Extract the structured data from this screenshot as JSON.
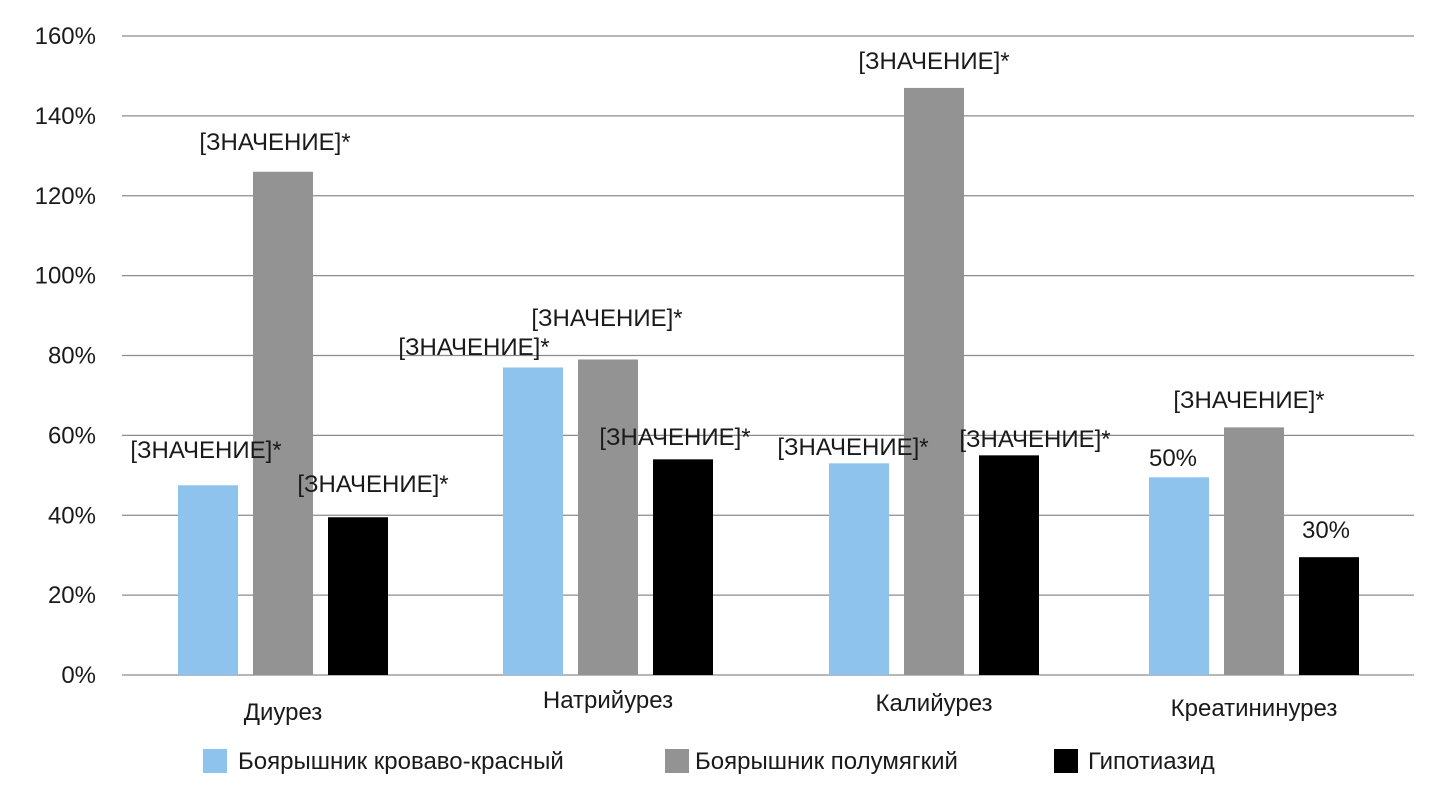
{
  "chart_data": {
    "type": "bar",
    "title": "",
    "xlabel": "",
    "ylabel": "",
    "categories": [
      "Диурез",
      "Натрийурез",
      "Калийурез",
      "Креатининурез"
    ],
    "ylim": [
      0,
      160
    ],
    "y_ticks": [
      "0%",
      "20%",
      "40%",
      "60%",
      "80%",
      "100%",
      "120%",
      "140%",
      "160%"
    ],
    "grid": true,
    "legend_position": "bottom",
    "series": [
      {
        "name": "Боярышник кроваво-красный",
        "color": "#8dc3ec",
        "values": [
          47.5,
          77,
          53,
          49.5
        ],
        "labels": [
          "[ЗНАЧЕНИЕ]*",
          "[ЗНАЧЕНИЕ]*",
          "[ЗНАЧЕНИЕ]*",
          "50%"
        ]
      },
      {
        "name": "Боярышник полумягкий",
        "color": "#939393",
        "values": [
          126,
          79,
          147,
          62
        ],
        "labels": [
          "[ЗНАЧЕНИЕ]*",
          "[ЗНАЧЕНИЕ]*",
          "[ЗНАЧЕНИЕ]*",
          "[ЗНАЧЕНИЕ]*"
        ]
      },
      {
        "name": "Гипотиазид",
        "color": "#000000",
        "values": [
          39.5,
          54,
          55,
          29.5
        ],
        "labels": [
          "[ЗНАЧЕНИЕ]*",
          "[ЗНАЧЕНИЕ]*",
          "[ЗНАЧЕНИЕ]*",
          "30%"
        ]
      }
    ]
  }
}
